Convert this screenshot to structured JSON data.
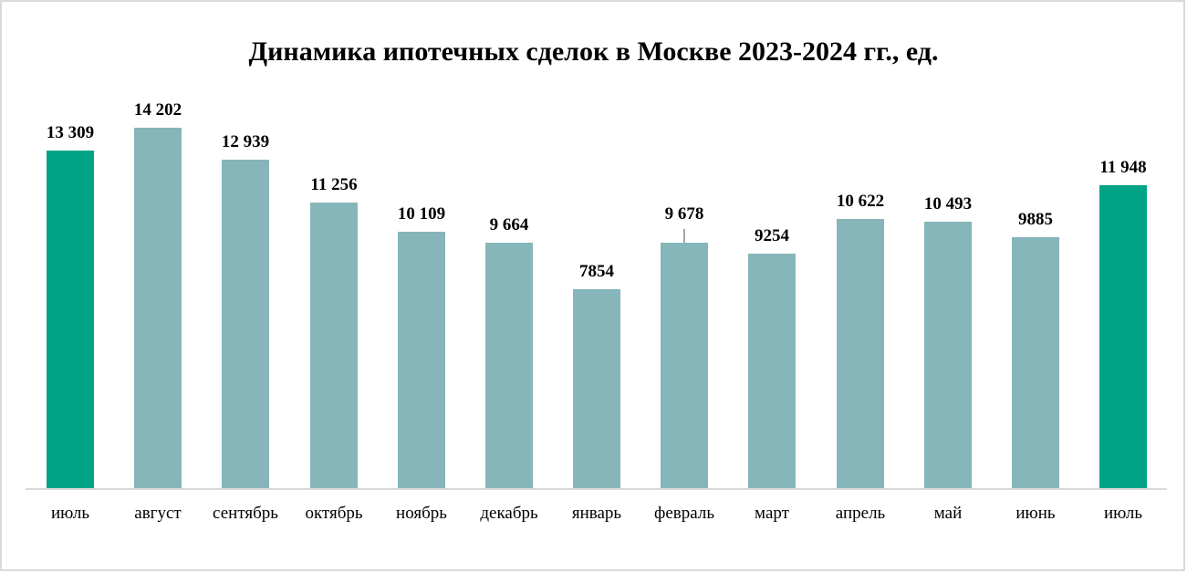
{
  "chart_data": {
    "type": "bar",
    "title": "Динамика ипотечных сделок в Москве 2023-2024 гг., ед.",
    "xlabel": "",
    "ylabel": "",
    "ylim": [
      0,
      14202
    ],
    "grid": false,
    "legend": null,
    "categories": [
      "июль",
      "август",
      "сентябрь",
      "октябрь",
      "ноябрь",
      "декабрь",
      "январь",
      "февраль",
      "март",
      "апрель",
      "май",
      "июнь",
      "июль"
    ],
    "values": [
      13309,
      14202,
      12939,
      11256,
      10109,
      9664,
      7854,
      9678,
      9254,
      10622,
      10493,
      9885,
      11948
    ],
    "data_labels": [
      "13 309",
      "14 202",
      "12 939",
      "11 256",
      "10 109",
      "9 664",
      "7854",
      "9 678",
      "9254",
      "10 622",
      "10 493",
      "9885",
      "11 948"
    ],
    "colors": [
      "#00a386",
      "#86b5ba",
      "#86b5ba",
      "#86b5ba",
      "#86b5ba",
      "#86b5ba",
      "#86b5ba",
      "#86b5ba",
      "#86b5ba",
      "#86b5ba",
      "#86b5ba",
      "#86b5ba",
      "#00a386"
    ]
  },
  "colors": {
    "highlight": "#00a386",
    "regular": "#86b5ba",
    "axis": "#d9d9d9",
    "border": "#d9d9d9"
  }
}
